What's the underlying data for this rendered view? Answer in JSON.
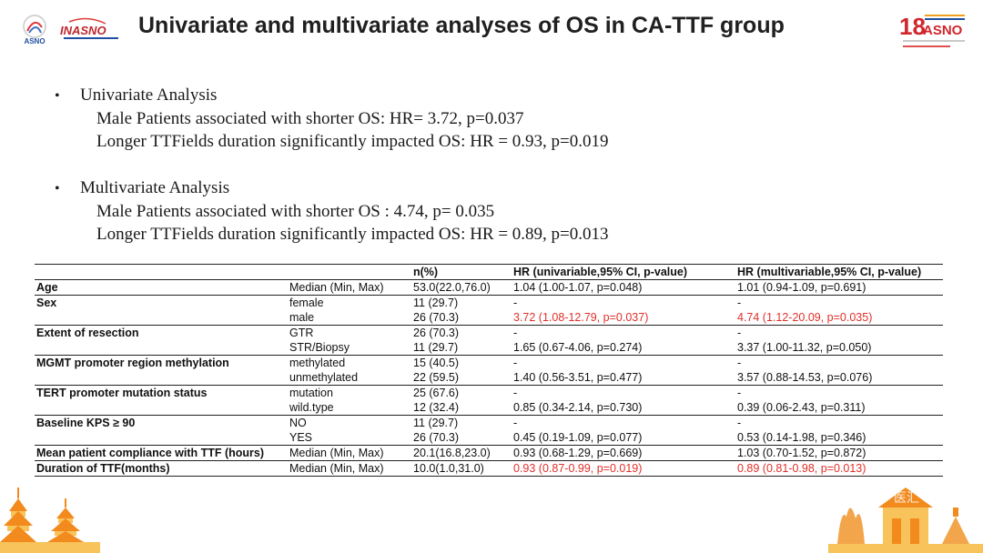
{
  "header": {
    "title": "Univariate and multivariate analyses of OS in CA-TTF group",
    "logo_left_label": "ASNO",
    "logo_mid_label": "INASNO",
    "logo_right_number": "18",
    "logo_right_label": "ASNO"
  },
  "bullets": [
    {
      "heading": "Univariate Analysis",
      "lines": [
        "Male Patients associated with shorter OS: HR= 3.72, p=0.037",
        "Longer TTFields duration significantly impacted OS: HR = 0.93, p=0.019"
      ]
    },
    {
      "heading": "Multivariate Analysis",
      "lines": [
        "Male Patients associated with shorter OS : 4.74, p= 0.035",
        "Longer TTFields duration significantly impacted OS: HR = 0.89, p=0.013"
      ]
    }
  ],
  "table": {
    "headers": [
      "",
      "",
      "n(%)",
      "HR (univariable,95% CI, p-value)",
      "HR (multivariable,95% CI, p-value)"
    ],
    "rows": [
      {
        "var": "Age",
        "level": "Median (Min, Max)",
        "n": "53.0(22.0,76.0)",
        "uni": "1.04 (1.00-1.07, p=0.048)",
        "multi": "1.01 (0.94-1.09, p=0.691)"
      },
      {
        "var": "Sex",
        "level": "female",
        "n": "11 (29.7)",
        "uni": "-",
        "multi": "-"
      },
      {
        "var": "",
        "level": "male",
        "n": "26 (70.3)",
        "uni": "3.72 (1.08-12.79, p=0.037)",
        "multi": "4.74 (1.12-20.09, p=0.035)"
      },
      {
        "var": "Extent of resection",
        "level": "GTR",
        "n": "26 (70.3)",
        "uni": "-",
        "multi": "-"
      },
      {
        "var": "",
        "level": "STR/Biopsy",
        "n": "11 (29.7)",
        "uni": "1.65 (0.67-4.06, p=0.274)",
        "multi": "3.37 (1.00-11.32, p=0.050)"
      },
      {
        "var": "MGMT promoter region methylation",
        "level": "methylated",
        "n": "15 (40.5)",
        "uni": "-",
        "multi": "-"
      },
      {
        "var": "",
        "level": "unmethylated",
        "n": "22 (59.5)",
        "uni": "1.40 (0.56-3.51, p=0.477)",
        "multi": "3.57 (0.88-14.53, p=0.076)"
      },
      {
        "var": "TERT promoter mutation status",
        "level": "mutation",
        "n": "25 (67.6)",
        "uni": "-",
        "multi": "-"
      },
      {
        "var": "",
        "level": "wild.type",
        "n": "12 (32.4)",
        "uni": "0.85 (0.34-2.14, p=0.730)",
        "multi": "0.39 (0.06-2.43, p=0.311)"
      },
      {
        "var": "Baseline KPS ≥ 90",
        "level": "NO",
        "n": "11 (29.7)",
        "uni": "-",
        "multi": "-"
      },
      {
        "var": "",
        "level": "YES",
        "n": "26 (70.3)",
        "uni": "0.45 (0.19-1.09, p=0.077)",
        "multi": "0.53 (0.14-1.98, p=0.346)"
      },
      {
        "var": "Mean patient compliance with TTF (hours)",
        "level": "Median (Min, Max)",
        "n": "20.1(16.8,23.0)",
        "uni": "0.93 (0.68-1.29, p=0.669)",
        "multi": "1.03 (0.70-1.52, p=0.872)"
      },
      {
        "var": "Duration of TTF(months)",
        "level": "Median (Min, Max)",
        "n": "10.0(1.0,31.0)",
        "uni": "0.93 (0.87-0.99, p=0.019)",
        "multi": "0.89 (0.81-0.98, p=0.013)"
      }
    ]
  },
  "watermark": "医汇",
  "colors": {
    "highlight": "#e0302a",
    "decor_orange": "#f28a1e",
    "decor_yellow": "#f7c35a"
  }
}
